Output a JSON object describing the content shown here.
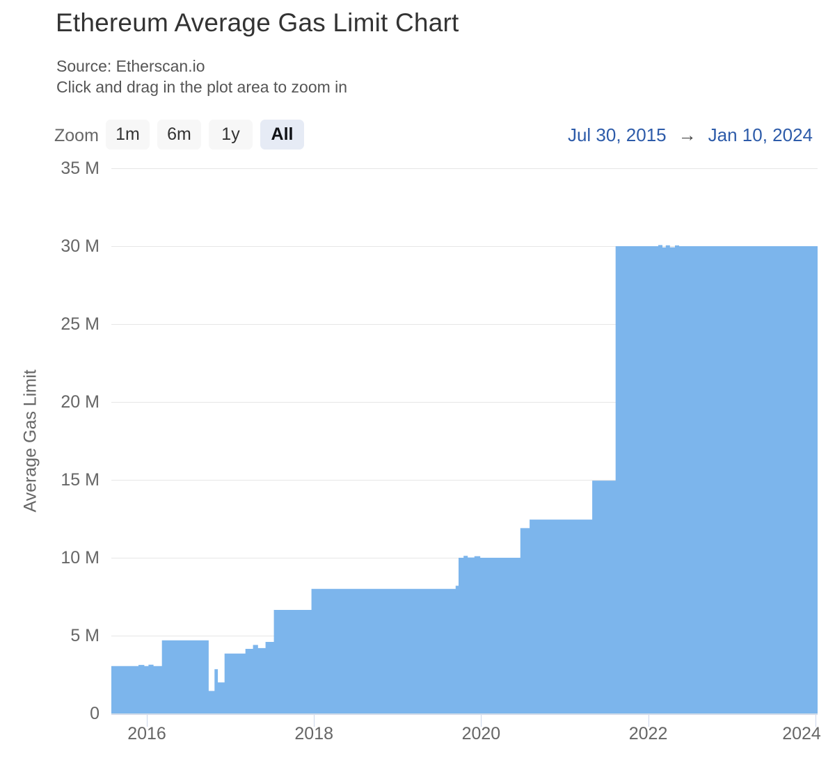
{
  "header": {
    "title": "Ethereum Average Gas Limit Chart",
    "subtitle_source": "Source: Etherscan.io",
    "subtitle_hint": "Click and drag in the plot area to zoom in"
  },
  "range_selector": {
    "zoom_label": "Zoom",
    "buttons": [
      {
        "label": "1m",
        "selected": false
      },
      {
        "label": "6m",
        "selected": false
      },
      {
        "label": "1y",
        "selected": false
      },
      {
        "label": "All",
        "selected": true
      }
    ],
    "from_date": "Jul 30, 2015",
    "arrow": "→",
    "to_date": "Jan 10, 2024"
  },
  "chart_data": {
    "type": "area",
    "title": "Ethereum Average Gas Limit Chart",
    "xlabel": "",
    "ylabel": "Average Gas Limit",
    "y_unit": "million gas (M)",
    "x_unit": "year",
    "xlim": [
      2015.575,
      2024.027
    ],
    "ylim": [
      0,
      35
    ],
    "x_ticks_years": [
      2016,
      2018,
      2020,
      2022,
      2024
    ],
    "x_tick_labels": [
      "2016",
      "2018",
      "2020",
      "2022",
      "2024"
    ],
    "y_ticks_m": [
      0,
      5,
      10,
      15,
      20,
      25,
      30,
      35
    ],
    "y_tick_labels": [
      "0",
      "5 M",
      "10 M",
      "15 M",
      "20 M",
      "25 M",
      "30 M",
      "35 M"
    ],
    "grid": true,
    "legend": false,
    "step": "after",
    "series": [
      {
        "name": "Average Gas Limit",
        "points": [
          [
            2015.575,
            3.05
          ],
          [
            2015.9,
            3.12
          ],
          [
            2015.97,
            3.05
          ],
          [
            2016.02,
            3.14
          ],
          [
            2016.08,
            3.05
          ],
          [
            2016.18,
            4.7
          ],
          [
            2016.74,
            1.45
          ],
          [
            2016.81,
            2.85
          ],
          [
            2016.85,
            2.0
          ],
          [
            2016.93,
            3.85
          ],
          [
            2017.18,
            4.15
          ],
          [
            2017.27,
            4.4
          ],
          [
            2017.33,
            4.2
          ],
          [
            2017.42,
            4.6
          ],
          [
            2017.52,
            6.65
          ],
          [
            2017.97,
            8.0
          ],
          [
            2019.695,
            8.2
          ],
          [
            2019.73,
            10.0
          ],
          [
            2019.79,
            10.12
          ],
          [
            2019.84,
            10.02
          ],
          [
            2019.92,
            10.1
          ],
          [
            2019.99,
            10.0
          ],
          [
            2020.47,
            11.9
          ],
          [
            2020.58,
            12.45
          ],
          [
            2021.33,
            14.95
          ],
          [
            2021.61,
            30.0
          ],
          [
            2022.12,
            30.07
          ],
          [
            2022.17,
            29.92
          ],
          [
            2022.21,
            30.06
          ],
          [
            2022.26,
            29.93
          ],
          [
            2022.32,
            30.05
          ],
          [
            2022.37,
            30.0
          ],
          [
            2024.027,
            30.0
          ]
        ]
      }
    ],
    "colors": {
      "area": "#7cb5ec",
      "grid": "#e6e6e6",
      "axis_line": "#ccd6eb",
      "tick_label": "#666666"
    }
  },
  "colors": {
    "title_text": "#333333",
    "subtitle_text": "#555555",
    "date_text": "#2d5ba9",
    "button_bg": "#f7f7f7",
    "button_selected_bg": "#e6ebf5",
    "area_blue": "#7cb5ec"
  }
}
